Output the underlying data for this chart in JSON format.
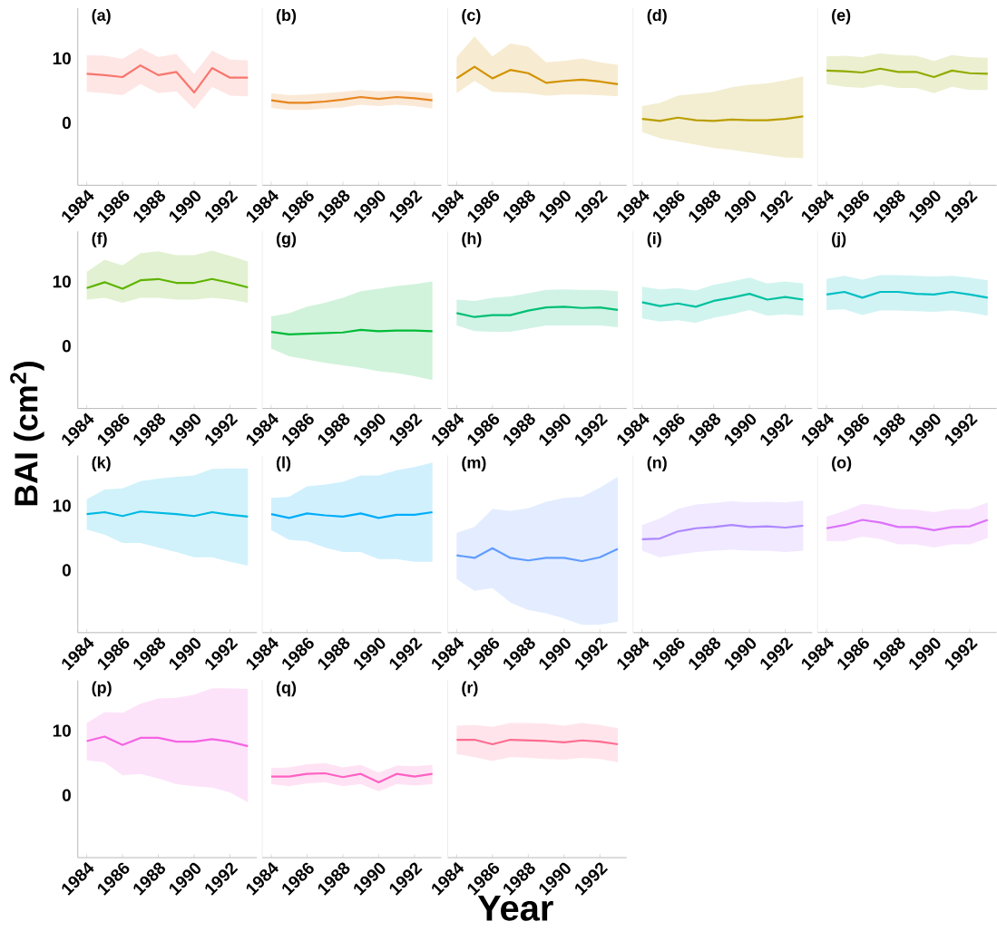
{
  "chart_data": [
    {
      "type": "line",
      "title": "(a)",
      "x": [
        1984,
        1985,
        1986,
        1987,
        1988,
        1989,
        1990,
        1991,
        1992,
        1993
      ],
      "xlim": [
        1983.5,
        1993.5
      ],
      "ylim": [
        -9.7,
        17.8
      ],
      "xticks": [
        1984,
        1986,
        1988,
        1990,
        1992
      ],
      "yticks": [
        0,
        10
      ],
      "series": [
        {
          "color": "#f8766d",
          "values": [
            7.6,
            7.4,
            7.1,
            8.9,
            7.4,
            7.9,
            4.7,
            8.5,
            7.0,
            7.0
          ],
          "lower": [
            4.8,
            4.6,
            4.3,
            6.0,
            4.6,
            4.9,
            2.1,
            5.6,
            4.2,
            4.1
          ],
          "upper": [
            10.5,
            10.4,
            9.9,
            11.6,
            10.2,
            10.7,
            7.6,
            11.2,
            9.8,
            9.7
          ]
        }
      ]
    },
    {
      "type": "line",
      "title": "(b)",
      "x": [
        1984,
        1985,
        1986,
        1987,
        1988,
        1989,
        1990,
        1991,
        1992,
        1993
      ],
      "xlim": [
        1983.5,
        1993.5
      ],
      "ylim": [
        -9.7,
        17.8
      ],
      "xticks": [
        1984,
        1986,
        1988,
        1990,
        1992
      ],
      "yticks": [
        0,
        10
      ],
      "tick_labels": "x",
      "series": [
        {
          "color": "#e7851e",
          "values": [
            3.5,
            3.1,
            3.1,
            3.3,
            3.6,
            4.0,
            3.7,
            4.0,
            3.8,
            3.5
          ],
          "lower": [
            2.3,
            2.0,
            2.0,
            2.2,
            2.4,
            2.8,
            2.6,
            2.8,
            2.6,
            2.2
          ],
          "upper": [
            4.6,
            4.3,
            4.4,
            4.6,
            4.8,
            5.1,
            4.9,
            5.0,
            4.8,
            4.6
          ]
        }
      ]
    },
    {
      "type": "line",
      "title": "(c)",
      "x": [
        1984,
        1985,
        1986,
        1987,
        1988,
        1989,
        1990,
        1991,
        1992,
        1993
      ],
      "xlim": [
        1983.5,
        1993.5
      ],
      "ylim": [
        -9.7,
        17.8
      ],
      "xticks": [
        1984,
        1986,
        1988,
        1990,
        1992
      ],
      "yticks": [
        0,
        10
      ],
      "tick_labels": "x",
      "series": [
        {
          "color": "#d39200",
          "values": [
            6.9,
            8.7,
            6.9,
            8.2,
            7.7,
            6.2,
            6.5,
            6.7,
            6.4,
            6.0
          ],
          "lower": [
            4.6,
            6.5,
            4.8,
            4.7,
            4.6,
            4.2,
            4.4,
            4.4,
            4.3,
            4.1
          ],
          "upper": [
            10.2,
            13.4,
            10.3,
            12.3,
            11.8,
            9.4,
            9.6,
            10.0,
            9.4,
            9.0
          ]
        }
      ]
    },
    {
      "type": "line",
      "title": "(d)",
      "x": [
        1984,
        1985,
        1986,
        1987,
        1988,
        1989,
        1990,
        1991,
        1992,
        1993
      ],
      "xlim": [
        1983.5,
        1993.5
      ],
      "ylim": [
        -9.7,
        17.8
      ],
      "xticks": [
        1984,
        1986,
        1988,
        1990,
        1992
      ],
      "yticks": [
        0,
        10
      ],
      "tick_labels": "x",
      "series": [
        {
          "color": "#ba9e00",
          "values": [
            0.6,
            0.3,
            0.8,
            0.4,
            0.3,
            0.5,
            0.4,
            0.4,
            0.6,
            1.0
          ],
          "lower": [
            -1.4,
            -2.4,
            -2.9,
            -3.4,
            -3.9,
            -4.2,
            -4.6,
            -5.0,
            -5.4,
            -5.5
          ],
          "upper": [
            2.6,
            3.1,
            4.2,
            4.5,
            4.8,
            5.5,
            5.9,
            6.1,
            6.6,
            7.2
          ]
        }
      ]
    },
    {
      "type": "line",
      "title": "(e)",
      "x": [
        1984,
        1985,
        1986,
        1987,
        1988,
        1989,
        1990,
        1991,
        1992,
        1993
      ],
      "xlim": [
        1983.5,
        1993.5
      ],
      "ylim": [
        -9.7,
        17.8
      ],
      "xticks": [
        1984,
        1986,
        1988,
        1990,
        1992
      ],
      "yticks": [
        0,
        10
      ],
      "tick_labels": "x",
      "series": [
        {
          "color": "#93aa00",
          "values": [
            8.1,
            8.0,
            7.8,
            8.4,
            7.9,
            7.9,
            7.1,
            8.1,
            7.7,
            7.6
          ],
          "lower": [
            6.0,
            5.6,
            5.4,
            5.9,
            5.4,
            5.4,
            4.6,
            5.6,
            5.1,
            5.1
          ],
          "upper": [
            10.3,
            10.4,
            10.2,
            10.8,
            10.5,
            10.4,
            9.6,
            10.5,
            10.2,
            10.1
          ]
        }
      ]
    },
    {
      "type": "line",
      "title": "(f)",
      "ylabel": "BAI (cm$^{2}$)",
      "x": [
        1984,
        1985,
        1986,
        1987,
        1988,
        1989,
        1990,
        1991,
        1992,
        1993
      ],
      "xlim": [
        1983.5,
        1993.5
      ],
      "ylim": [
        -9.7,
        17.8
      ],
      "xticks": [
        1984,
        1986,
        1988,
        1990,
        1992
      ],
      "yticks": [
        0,
        10
      ],
      "series": [
        {
          "color": "#5eb300",
          "values": [
            9.0,
            9.9,
            8.9,
            10.2,
            10.4,
            9.8,
            9.8,
            10.4,
            9.8,
            9.1
          ],
          "lower": [
            7.2,
            7.5,
            6.7,
            7.5,
            7.5,
            7.2,
            7.2,
            7.5,
            7.2,
            6.7
          ],
          "upper": [
            11.5,
            13.4,
            12.5,
            14.4,
            14.7,
            14.1,
            14.1,
            14.8,
            14.0,
            13.1
          ]
        }
      ]
    },
    {
      "type": "line",
      "title": "(g)",
      "x": [
        1984,
        1985,
        1986,
        1987,
        1988,
        1989,
        1990,
        1991,
        1992,
        1993
      ],
      "xlim": [
        1983.5,
        1993.5
      ],
      "ylim": [
        -9.7,
        17.8
      ],
      "xticks": [
        1984,
        1986,
        1988,
        1990,
        1992
      ],
      "yticks": [
        0,
        10
      ],
      "tick_labels": "x",
      "series": [
        {
          "color": "#00ba38",
          "values": [
            2.2,
            1.8,
            1.9,
            2.0,
            2.1,
            2.5,
            2.3,
            2.4,
            2.4,
            2.3
          ],
          "lower": [
            -0.4,
            -1.6,
            -2.1,
            -2.6,
            -3.0,
            -3.4,
            -3.9,
            -4.2,
            -4.7,
            -5.3
          ],
          "upper": [
            4.6,
            5.1,
            6.1,
            6.7,
            7.5,
            8.5,
            8.9,
            9.3,
            9.6,
            10.0
          ]
        }
      ]
    },
    {
      "type": "line",
      "title": "(h)",
      "x": [
        1984,
        1985,
        1986,
        1987,
        1988,
        1989,
        1990,
        1991,
        1992,
        1993
      ],
      "xlim": [
        1983.5,
        1993.5
      ],
      "ylim": [
        -9.7,
        17.8
      ],
      "xticks": [
        1984,
        1986,
        1988,
        1990,
        1992
      ],
      "yticks": [
        0,
        10
      ],
      "tick_labels": "x",
      "series": [
        {
          "color": "#00bf74",
          "values": [
            5.1,
            4.5,
            4.8,
            4.8,
            5.5,
            6.0,
            6.1,
            5.9,
            6.0,
            5.6
          ],
          "lower": [
            3.2,
            2.3,
            2.2,
            2.2,
            2.7,
            3.2,
            3.2,
            3.2,
            3.2,
            2.9
          ],
          "upper": [
            7.2,
            7.0,
            7.5,
            7.7,
            8.2,
            8.7,
            8.8,
            8.7,
            8.7,
            8.5
          ]
        }
      ]
    },
    {
      "type": "line",
      "title": "(i)",
      "x": [
        1984,
        1985,
        1986,
        1987,
        1988,
        1989,
        1990,
        1991,
        1992,
        1993
      ],
      "xlim": [
        1983.5,
        1993.5
      ],
      "ylim": [
        -9.7,
        17.8
      ],
      "xticks": [
        1984,
        1986,
        1988,
        1990,
        1992
      ],
      "yticks": [
        0,
        10
      ],
      "tick_labels": "x",
      "series": [
        {
          "color": "#00c19f",
          "values": [
            6.8,
            6.2,
            6.6,
            6.1,
            7.0,
            7.5,
            8.1,
            7.2,
            7.6,
            7.2
          ],
          "lower": [
            4.3,
            3.8,
            4.0,
            3.6,
            4.4,
            4.9,
            5.6,
            4.7,
            4.9,
            4.7
          ],
          "upper": [
            9.2,
            8.8,
            9.0,
            8.6,
            9.5,
            10.0,
            10.6,
            9.7,
            10.0,
            9.7
          ]
        }
      ]
    },
    {
      "type": "line",
      "title": "(j)",
      "x": [
        1984,
        1985,
        1986,
        1987,
        1988,
        1989,
        1990,
        1991,
        1992,
        1993
      ],
      "xlim": [
        1983.5,
        1993.5
      ],
      "ylim": [
        -9.7,
        17.8
      ],
      "xticks": [
        1984,
        1986,
        1988,
        1990,
        1992
      ],
      "yticks": [
        0,
        10
      ],
      "tick_labels": "x",
      "series": [
        {
          "color": "#00bfc4",
          "values": [
            8.0,
            8.4,
            7.5,
            8.4,
            8.4,
            8.1,
            8.0,
            8.4,
            8.0,
            7.5
          ],
          "lower": [
            5.6,
            5.7,
            4.8,
            5.5,
            5.5,
            5.4,
            5.3,
            5.5,
            5.2,
            4.7
          ],
          "upper": [
            10.4,
            10.9,
            10.3,
            11.0,
            11.0,
            10.9,
            10.8,
            10.9,
            10.6,
            10.2
          ]
        }
      ]
    },
    {
      "type": "line",
      "title": "(k)",
      "x": [
        1984,
        1985,
        1986,
        1987,
        1988,
        1989,
        1990,
        1991,
        1992,
        1993
      ],
      "xlim": [
        1983.5,
        1993.5
      ],
      "ylim": [
        -9.7,
        17.8
      ],
      "xticks": [
        1984,
        1986,
        1988,
        1990,
        1992
      ],
      "yticks": [
        0,
        10
      ],
      "series": [
        {
          "color": "#00b9e3",
          "values": [
            8.7,
            9.0,
            8.4,
            9.1,
            8.9,
            8.7,
            8.4,
            9.0,
            8.6,
            8.3
          ],
          "lower": [
            6.3,
            5.5,
            4.2,
            4.2,
            3.5,
            2.8,
            2.0,
            2.0,
            1.3,
            0.7
          ],
          "upper": [
            11.0,
            12.5,
            12.7,
            13.8,
            14.2,
            14.5,
            14.7,
            15.7,
            15.8,
            15.8
          ]
        }
      ]
    },
    {
      "type": "line",
      "title": "(l)",
      "x": [
        1984,
        1985,
        1986,
        1987,
        1988,
        1989,
        1990,
        1991,
        1992,
        1993
      ],
      "xlim": [
        1983.5,
        1993.5
      ],
      "ylim": [
        -9.7,
        17.8
      ],
      "xticks": [
        1984,
        1986,
        1988,
        1990,
        1992
      ],
      "yticks": [
        0,
        10
      ],
      "tick_labels": "x",
      "series": [
        {
          "color": "#00adfa",
          "values": [
            8.7,
            8.1,
            8.8,
            8.5,
            8.3,
            8.8,
            8.1,
            8.6,
            8.6,
            9.0
          ],
          "lower": [
            6.2,
            4.7,
            4.5,
            3.5,
            2.8,
            2.8,
            1.7,
            1.7,
            1.3,
            1.3
          ],
          "upper": [
            11.2,
            11.4,
            13.0,
            13.3,
            13.7,
            14.7,
            14.7,
            15.5,
            16.0,
            16.7
          ]
        }
      ]
    },
    {
      "type": "line",
      "title": "(m)",
      "x": [
        1984,
        1985,
        1986,
        1987,
        1988,
        1989,
        1990,
        1991,
        1992,
        1993
      ],
      "xlim": [
        1983.5,
        1993.5
      ],
      "ylim": [
        -9.7,
        17.8
      ],
      "xticks": [
        1984,
        1986,
        1988,
        1990,
        1992
      ],
      "yticks": [
        0,
        10
      ],
      "tick_labels": "x",
      "series": [
        {
          "color": "#619cff",
          "values": [
            2.3,
            1.9,
            3.4,
            1.9,
            1.5,
            1.9,
            1.9,
            1.4,
            2.0,
            3.3
          ],
          "lower": [
            -1.4,
            -3.2,
            -2.8,
            -5.0,
            -6.2,
            -6.7,
            -7.5,
            -8.5,
            -8.5,
            -8.0
          ],
          "upper": [
            5.8,
            6.7,
            9.5,
            9.2,
            9.6,
            10.6,
            11.2,
            11.4,
            12.8,
            14.5
          ]
        }
      ]
    },
    {
      "type": "line",
      "title": "(n)",
      "x": [
        1984,
        1985,
        1986,
        1987,
        1988,
        1989,
        1990,
        1991,
        1992,
        1993
      ],
      "xlim": [
        1983.5,
        1993.5
      ],
      "ylim": [
        -9.7,
        17.8
      ],
      "xticks": [
        1984,
        1986,
        1988,
        1990,
        1992
      ],
      "yticks": [
        0,
        10
      ],
      "tick_labels": "x",
      "series": [
        {
          "color": "#ae87ff",
          "values": [
            4.8,
            4.9,
            6.0,
            6.5,
            6.7,
            7.0,
            6.7,
            6.8,
            6.6,
            6.9
          ],
          "lower": [
            3.0,
            2.0,
            2.4,
            2.8,
            3.0,
            3.2,
            3.0,
            3.0,
            2.8,
            3.0
          ],
          "upper": [
            7.0,
            8.0,
            9.5,
            10.2,
            10.4,
            10.7,
            10.5,
            10.6,
            10.5,
            10.8
          ]
        }
      ]
    },
    {
      "type": "line",
      "title": "(o)",
      "x": [
        1984,
        1985,
        1986,
        1987,
        1988,
        1989,
        1990,
        1991,
        1992,
        1993
      ],
      "xlim": [
        1983.5,
        1993.5
      ],
      "ylim": [
        -9.7,
        17.8
      ],
      "xticks": [
        1984,
        1986,
        1988,
        1990,
        1992
      ],
      "yticks": [
        0,
        10
      ],
      "tick_labels": "x",
      "series": [
        {
          "color": "#db72fb",
          "values": [
            6.5,
            7.0,
            7.8,
            7.4,
            6.7,
            6.7,
            6.2,
            6.7,
            6.8,
            7.8
          ],
          "lower": [
            4.5,
            4.5,
            5.2,
            4.8,
            4.0,
            4.0,
            3.5,
            4.0,
            4.0,
            5.0
          ],
          "upper": [
            8.3,
            9.2,
            10.3,
            10.0,
            9.5,
            9.4,
            9.0,
            9.5,
            9.5,
            10.5
          ]
        }
      ]
    },
    {
      "type": "line",
      "title": "(p)",
      "x": [
        1984,
        1985,
        1986,
        1987,
        1988,
        1989,
        1990,
        1991,
        1992,
        1993
      ],
      "xlim": [
        1983.5,
        1993.5
      ],
      "ylim": [
        -9.7,
        17.8
      ],
      "xticks": [
        1984,
        1986,
        1988,
        1990,
        1992
      ],
      "yticks": [
        0,
        10
      ],
      "series": [
        {
          "color": "#f564e3",
          "values": [
            8.4,
            9.1,
            7.8,
            8.9,
            8.9,
            8.3,
            8.3,
            8.7,
            8.3,
            7.6
          ],
          "lower": [
            5.4,
            5.1,
            3.1,
            3.3,
            2.6,
            1.7,
            1.4,
            1.2,
            0.4,
            -1.1
          ],
          "upper": [
            11.2,
            12.9,
            12.8,
            14.2,
            15.0,
            15.1,
            15.6,
            16.6,
            16.6,
            16.5
          ]
        }
      ]
    },
    {
      "type": "line",
      "title": "(q)",
      "x": [
        1984,
        1985,
        1986,
        1987,
        1988,
        1989,
        1990,
        1991,
        1992,
        1993
      ],
      "xlim": [
        1983.5,
        1993.5
      ],
      "ylim": [
        -9.7,
        17.8
      ],
      "xticks": [
        1984,
        1986,
        1988,
        1990,
        1992
      ],
      "yticks": [
        0,
        10
      ],
      "tick_labels": "x",
      "series": [
        {
          "color": "#ff61c3",
          "values": [
            2.9,
            2.9,
            3.3,
            3.4,
            2.8,
            3.3,
            2.0,
            3.3,
            2.9,
            3.3
          ],
          "lower": [
            1.7,
            1.4,
            1.8,
            2.0,
            1.4,
            1.7,
            0.6,
            1.7,
            1.5,
            1.7
          ],
          "upper": [
            4.2,
            4.3,
            4.8,
            5.0,
            4.3,
            4.7,
            3.5,
            4.6,
            4.5,
            4.7
          ]
        }
      ]
    },
    {
      "type": "line",
      "title": "(r)",
      "xlabel": "Year",
      "x": [
        1984,
        1985,
        1986,
        1987,
        1988,
        1989,
        1990,
        1991,
        1992,
        1993
      ],
      "xlim": [
        1983.5,
        1993.5
      ],
      "ylim": [
        -9.7,
        17.8
      ],
      "xticks": [
        1984,
        1986,
        1988,
        1990,
        1992
      ],
      "yticks": [
        0,
        10
      ],
      "tick_labels": "x",
      "series": [
        {
          "color": "#ff6c91",
          "values": [
            8.6,
            8.6,
            7.9,
            8.6,
            8.5,
            8.4,
            8.2,
            8.5,
            8.3,
            7.9
          ],
          "lower": [
            6.4,
            5.9,
            5.3,
            5.9,
            5.8,
            5.6,
            5.5,
            5.8,
            5.6,
            5.1
          ],
          "upper": [
            10.8,
            10.9,
            10.6,
            11.2,
            11.2,
            11.1,
            10.8,
            11.2,
            10.9,
            10.4
          ]
        }
      ]
    }
  ]
}
